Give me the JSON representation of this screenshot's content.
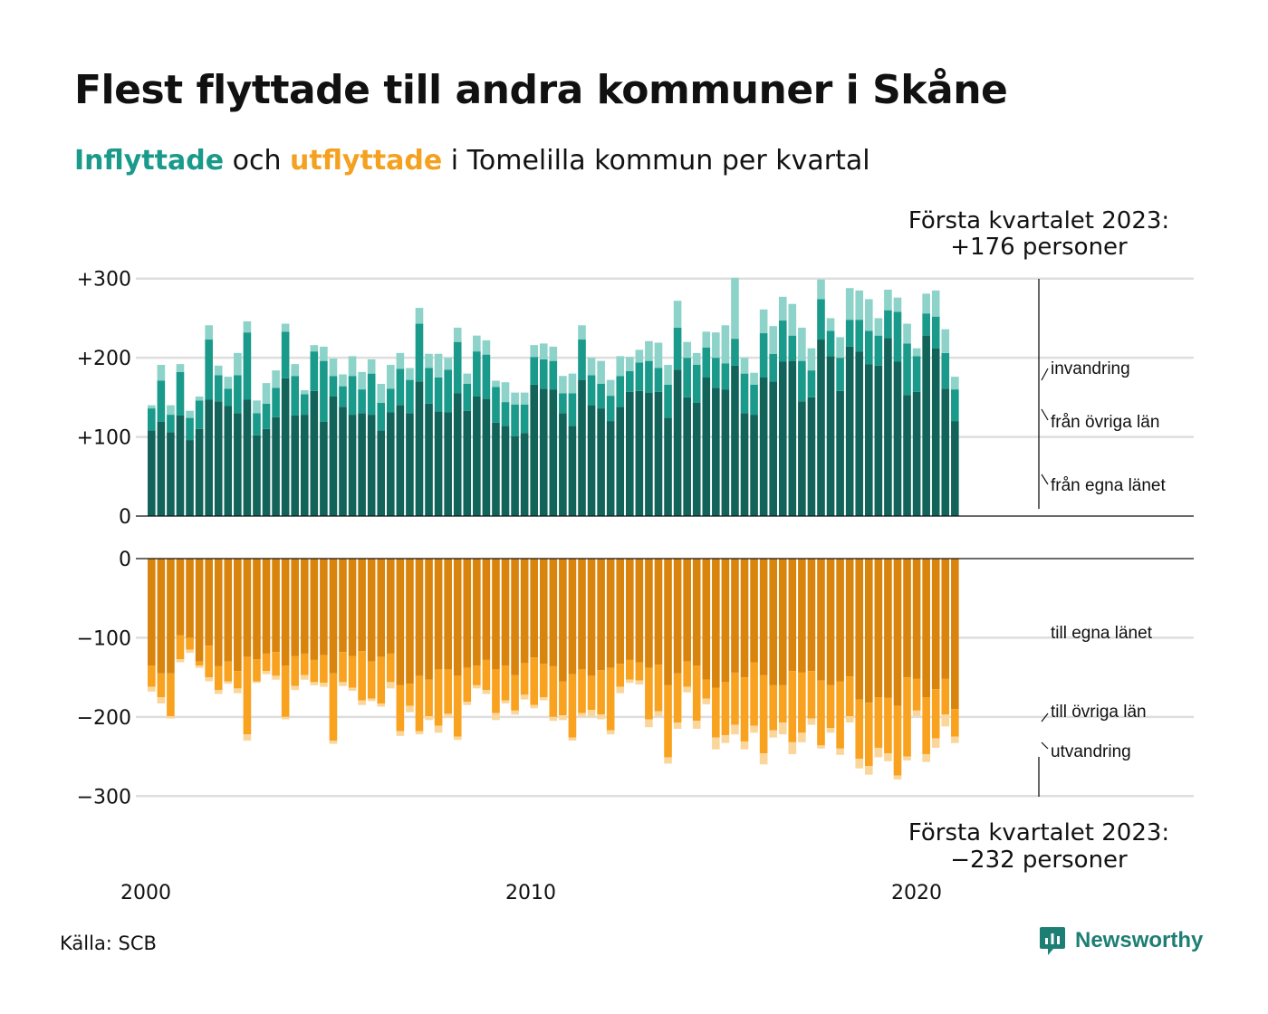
{
  "title": "Flest flyttade till andra kommuner i Skåne",
  "subtitle": {
    "in_word": "Inflyttade",
    "mid": " och ",
    "out_word": "utflyttade",
    "rest": " i Tomelilla kommun per kvartal"
  },
  "source": "Källa: SCB",
  "logo": {
    "text": "Newsworthy"
  },
  "colors": {
    "in_own": "#12635a",
    "in_other": "#1a9a8a",
    "in_foreign": "#8dd3c9",
    "out_own": "#d9840c",
    "out_other": "#f8a21f",
    "out_foreign": "#fbd69a",
    "grid": "#dedede",
    "brand": "#1d7f74"
  },
  "annotations": {
    "top": [
      "Första kvartalet 2023:",
      "+176 personer"
    ],
    "bottom": [
      "Första kvartalet 2023:",
      "−232 personer"
    ]
  },
  "chart_data": {
    "type": "bar",
    "stacked": true,
    "x_unit": "quarter",
    "start": "2000 Q1",
    "end": "2023 Q1",
    "x_ticks": [
      "2000",
      "2010",
      "2020"
    ],
    "panels": [
      {
        "name": "Inflyttade",
        "y_ticks": [
          "+300",
          "+200",
          "+100",
          "0"
        ],
        "ylim": [
          0,
          300
        ],
        "series": [
          {
            "name": "från egna länet",
            "color": "#12635a",
            "values": [
              108,
              119,
              106,
              127,
              96,
              110,
              147,
              145,
              139,
              130,
              147,
              102,
              110,
              125,
              174,
              127,
              128,
              158,
              119,
              151,
              138,
              128,
              130,
              128,
              108,
              131,
              140,
              130,
              170,
              142,
              132,
              131,
              155,
              133,
              151,
              148,
              118,
              114,
              101,
              105,
              166,
              161,
              160,
              130,
              114,
              172,
              140,
              136,
              120,
              138,
              157,
              158,
              156,
              157,
              124,
              185,
              150,
              143,
              175,
              162,
              160,
              190,
              130,
              128,
              175,
              170,
              195,
              196,
              145,
              150,
              223,
              202,
              158,
              214,
              208,
              192,
              190,
              225,
              195,
              153,
              157,
              228,
              212,
              161,
              120
            ]
          },
          {
            "name": "från övriga län",
            "color": "#1a9a8a",
            "values": [
              28,
              52,
              22,
              55,
              28,
              36,
              76,
              33,
              22,
              48,
              85,
              28,
              32,
              37,
              59,
              50,
              26,
              50,
              77,
              26,
              26,
              49,
              30,
              52,
              35,
              30,
              46,
              42,
              73,
              45,
              43,
              54,
              65,
              34,
              57,
              56,
              45,
              30,
              40,
              36,
              35,
              37,
              36,
              25,
              41,
              51,
              38,
              31,
              32,
              39,
              26,
              36,
              40,
              30,
              42,
              53,
              50,
              48,
              38,
              38,
              33,
              34,
              50,
              38,
              56,
              35,
              52,
              32,
              51,
              34,
              51,
              32,
              42,
              34,
              40,
              42,
              38,
              35,
              63,
              65,
              45,
              28,
              40,
              45,
              40
            ]
          },
          {
            "name": "invandring",
            "color": "#8dd3c9",
            "values": [
              4,
              20,
              12,
              10,
              9,
              5,
              18,
              12,
              15,
              28,
              14,
              16,
              26,
              22,
              10,
              15,
              5,
              8,
              18,
              22,
              15,
              25,
              22,
              18,
              24,
              30,
              20,
              15,
              20,
              18,
              30,
              15,
              18,
              13,
              20,
              18,
              8,
              25,
              15,
              15,
              15,
              20,
              18,
              22,
              25,
              18,
              22,
              29,
              20,
              25,
              18,
              16,
              25,
              32,
              25,
              34,
              20,
              15,
              20,
              32,
              48,
              77,
              20,
              15,
              30,
              35,
              30,
              40,
              42,
              28,
              25,
              16,
              26,
              40,
              37,
              40,
              22,
              26,
              18,
              25,
              10,
              25,
              33,
              30,
              16
            ]
          }
        ]
      },
      {
        "name": "Utflyttade",
        "y_ticks": [
          "0",
          "−100",
          "−200",
          "−300"
        ],
        "ylim": [
          -300,
          0
        ],
        "series": [
          {
            "name": "till egna länet",
            "color": "#d9840c",
            "values": [
              -135,
              -145,
              -145,
              -97,
              -100,
              -130,
              -110,
              -136,
              -130,
              -142,
              -124,
              -127,
              -120,
              -118,
              -135,
              -123,
              -120,
              -128,
              -122,
              -145,
              -118,
              -123,
              -117,
              -130,
              -124,
              -120,
              -160,
              -158,
              -148,
              -153,
              -140,
              -140,
              -148,
              -138,
              -135,
              -128,
              -140,
              -135,
              -147,
              -132,
              -125,
              -133,
              -136,
              -155,
              -146,
              -140,
              -148,
              -141,
              -138,
              -133,
              -128,
              -131,
              -138,
              -134,
              -160,
              -145,
              -130,
              -135,
              -153,
              -163,
              -156,
              -144,
              -150,
              -131,
              -147,
              -160,
              -160,
              -142,
              -144,
              -142,
              -154,
              -160,
              -155,
              -149,
              -178,
              -182,
              -175,
              -176,
              -186,
              -150,
              -152,
              -175,
              -165,
              -152,
              -190
            ]
          },
          {
            "name": "till övriga län",
            "color": "#f8a21f",
            "values": [
              -27,
              -30,
              -54,
              -30,
              -15,
              -5,
              -40,
              -30,
              -25,
              -22,
              -98,
              -28,
              -22,
              -30,
              -65,
              -38,
              -27,
              -28,
              -35,
              -85,
              -38,
              -40,
              -62,
              -47,
              -59,
              -36,
              -58,
              -28,
              -70,
              -46,
              -71,
              -56,
              -77,
              -43,
              -25,
              -38,
              -55,
              -44,
              -45,
              -40,
              -60,
              -42,
              -64,
              -43,
              -80,
              -55,
              -43,
              -56,
              -79,
              -29,
              -25,
              -23,
              -65,
              -59,
              -91,
              -62,
              -32,
              -70,
              -24,
              -63,
              -67,
              -66,
              -81,
              -80,
              -99,
              -57,
              -47,
              -90,
              -76,
              -60,
              -82,
              -54,
              -85,
              -50,
              -75,
              -80,
              -64,
              -70,
              -88,
              -100,
              -40,
              -72,
              -62,
              -45,
              -35
            ]
          },
          {
            "name": "utvandring",
            "color": "#fbd69a",
            "values": [
              -6,
              -8,
              -3,
              -4,
              -4,
              -3,
              -5,
              -5,
              -3,
              -6,
              -8,
              -2,
              -4,
              -5,
              -3,
              -5,
              -6,
              -4,
              -5,
              -4,
              -5,
              -4,
              -6,
              -3,
              -4,
              -8,
              -6,
              -8,
              -4,
              -5,
              -9,
              -5,
              -4,
              -4,
              -4,
              -5,
              -9,
              -4,
              -5,
              -6,
              -4,
              -4,
              -5,
              -6,
              -4,
              -5,
              -9,
              -6,
              -5,
              -8,
              -4,
              -5,
              -10,
              -7,
              -8,
              -8,
              -7,
              -10,
              -7,
              -15,
              -10,
              -12,
              -10,
              -9,
              -14,
              -9,
              -15,
              -15,
              -12,
              -8,
              -4,
              -6,
              -8,
              -8,
              -12,
              -11,
              -12,
              -10,
              -5,
              -5,
              -7,
              -10,
              -12,
              -15,
              -8
            ]
          }
        ]
      }
    ]
  }
}
